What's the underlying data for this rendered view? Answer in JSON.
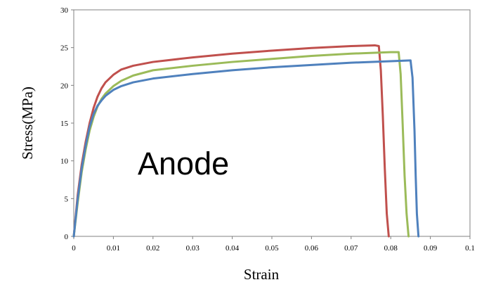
{
  "chart_data": {
    "type": "line",
    "title": "",
    "xlabel": "Strain",
    "ylabel": "Stress(MPa)",
    "xlim": [
      0,
      0.1
    ],
    "ylim": [
      0,
      30
    ],
    "xticks": [
      "0",
      "0.01",
      "0.02",
      "0.03",
      "0.04",
      "0.05",
      "0.06",
      "0.07",
      "0.08",
      "0.09",
      "0.1"
    ],
    "yticks": [
      "0",
      "5",
      "10",
      "15",
      "20",
      "25",
      "30"
    ],
    "grid": false,
    "legend": "none",
    "annotation": "Anode",
    "series": [
      {
        "color": "#c0504d",
        "x": [
          0,
          0.001,
          0.002,
          0.003,
          0.004,
          0.005,
          0.006,
          0.007,
          0.008,
          0.01,
          0.012,
          0.015,
          0.02,
          0.03,
          0.04,
          0.05,
          0.06,
          0.07,
          0.076,
          0.077,
          0.0775,
          0.078,
          0.0785,
          0.079,
          0.0795
        ],
        "y": [
          0,
          5.5,
          9.5,
          12.5,
          15,
          17,
          18.5,
          19.6,
          20.4,
          21.4,
          22.1,
          22.6,
          23.1,
          23.7,
          24.2,
          24.6,
          24.95,
          25.2,
          25.3,
          25.2,
          22,
          16,
          9,
          3,
          0
        ]
      },
      {
        "color": "#9bbb59",
        "x": [
          0,
          0.001,
          0.002,
          0.003,
          0.004,
          0.005,
          0.006,
          0.007,
          0.008,
          0.01,
          0.012,
          0.015,
          0.02,
          0.03,
          0.04,
          0.05,
          0.06,
          0.07,
          0.08,
          0.082,
          0.0825,
          0.083,
          0.0835,
          0.084,
          0.0845
        ],
        "y": [
          0,
          4.5,
          8.5,
          11.5,
          14,
          15.8,
          17.2,
          18.2,
          18.9,
          19.9,
          20.6,
          21.3,
          22.0,
          22.6,
          23.1,
          23.5,
          23.9,
          24.2,
          24.4,
          24.4,
          21.5,
          15,
          8,
          3,
          0
        ]
      },
      {
        "color": "#4f81bd",
        "x": [
          0,
          0.001,
          0.002,
          0.003,
          0.004,
          0.005,
          0.006,
          0.007,
          0.008,
          0.01,
          0.012,
          0.015,
          0.02,
          0.03,
          0.04,
          0.05,
          0.06,
          0.07,
          0.08,
          0.085,
          0.0855,
          0.086,
          0.0863,
          0.0866,
          0.087
        ],
        "y": [
          0,
          5,
          9,
          12,
          14.5,
          16.2,
          17.3,
          18.0,
          18.6,
          19.4,
          19.9,
          20.4,
          20.9,
          21.5,
          22.0,
          22.4,
          22.7,
          23.0,
          23.2,
          23.3,
          21,
          14,
          8,
          3,
          0
        ]
      }
    ]
  }
}
